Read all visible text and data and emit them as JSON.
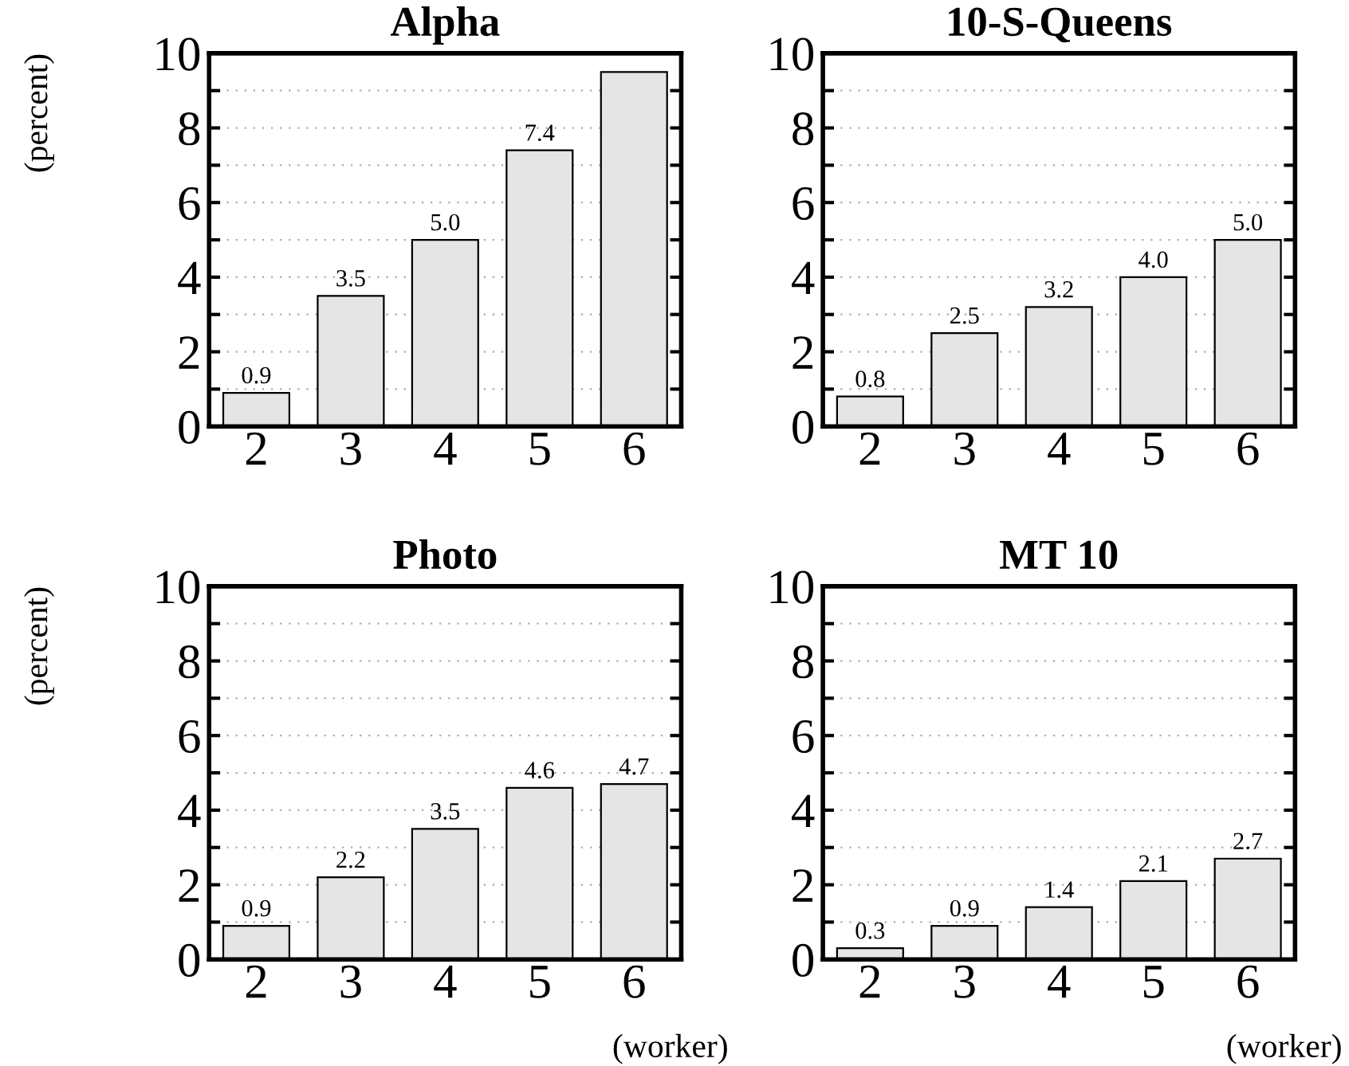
{
  "chart_data": [
    {
      "type": "bar",
      "title": "Alpha",
      "ylabel": "(percent)",
      "categories": [
        "2",
        "3",
        "4",
        "5",
        "6"
      ],
      "values": [
        0.9,
        3.5,
        5.0,
        7.4,
        9.5
      ],
      "value_labels": [
        "0.9",
        "3.5",
        "5.0",
        "7.4",
        null
      ],
      "color": "#e5e5e5",
      "ylim": [
        0,
        10
      ],
      "yticks": [
        0,
        {
          "value": 1,
          "label": null
        },
        2,
        {
          "value": 3,
          "label": null
        },
        4,
        {
          "value": 5,
          "label": null
        },
        6,
        {
          "value": 7,
          "label": null
        },
        8,
        {
          "value": 9,
          "label": null
        },
        10
      ],
      "grid": "y"
    },
    {
      "type": "bar",
      "title": "10-S-Queens",
      "categories": [
        "2",
        "3",
        "4",
        "5",
        "6"
      ],
      "values": [
        0.8,
        2.5,
        3.2,
        4.0,
        5.0
      ],
      "value_labels": [
        "0.8",
        "2.5",
        "3.2",
        "4.0",
        "5.0"
      ],
      "color": "#e5e5e5",
      "ylim": [
        0,
        10
      ],
      "yticks": [
        0,
        {
          "value": 1,
          "label": null
        },
        2,
        {
          "value": 3,
          "label": null
        },
        4,
        {
          "value": 5,
          "label": null
        },
        6,
        {
          "value": 7,
          "label": null
        },
        8,
        {
          "value": 9,
          "label": null
        },
        10
      ],
      "grid": "y"
    },
    {
      "type": "bar",
      "title": "Photo",
      "ylabel": "(percent)",
      "xlabel": "(worker)",
      "categories": [
        "2",
        "3",
        "4",
        "5",
        "6"
      ],
      "values": [
        0.9,
        2.2,
        3.5,
        4.6,
        4.7
      ],
      "value_labels": [
        "0.9",
        "2.2",
        "3.5",
        "4.6",
        "4.7"
      ],
      "color": "#e5e5e5",
      "ylim": [
        0,
        10
      ],
      "yticks": [
        0,
        {
          "value": 1,
          "label": null
        },
        2,
        {
          "value": 3,
          "label": null
        },
        4,
        {
          "value": 5,
          "label": null
        },
        6,
        {
          "value": 7,
          "label": null
        },
        8,
        {
          "value": 9,
          "label": null
        },
        10
      ],
      "grid": "y"
    },
    {
      "type": "bar",
      "title": "MT 10",
      "xlabel": "(worker)",
      "categories": [
        "2",
        "3",
        "4",
        "5",
        "6"
      ],
      "values": [
        0.3,
        0.9,
        1.4,
        2.1,
        2.7
      ],
      "value_labels": [
        "0.3",
        "0.9",
        "1.4",
        "2.1",
        "2.7"
      ],
      "color": "#e5e5e5",
      "ylim": [
        0,
        10
      ],
      "yticks": [
        0,
        {
          "value": 1,
          "label": null
        },
        2,
        {
          "value": 3,
          "label": null
        },
        4,
        {
          "value": 5,
          "label": null
        },
        6,
        {
          "value": 7,
          "label": null
        },
        8,
        {
          "value": 9,
          "label": null
        },
        10
      ],
      "grid": "y"
    }
  ]
}
